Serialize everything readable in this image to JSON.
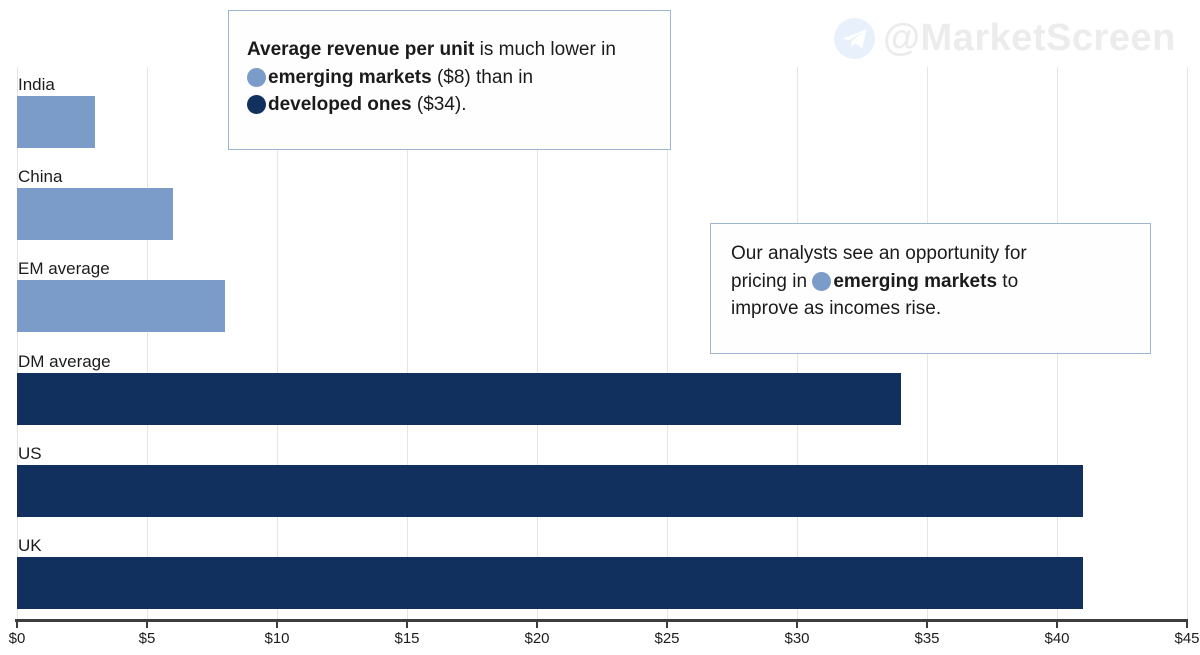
{
  "watermark": {
    "handle": "@MarketScreen"
  },
  "annotations": [
    {
      "id": "callout-revenue",
      "lines": [
        [
          {
            "t": "Average revenue per unit",
            "b": true
          },
          {
            "t": " is much lower in"
          }
        ],
        [
          {
            "dot": "emerging"
          },
          {
            "t": "emerging markets",
            "b": true
          },
          {
            "t": " ($8) than in"
          }
        ],
        [
          {
            "dot": "developed"
          },
          {
            "t": "developed ones",
            "b": true
          },
          {
            "t": " ($34)."
          }
        ]
      ]
    },
    {
      "id": "callout-analysts",
      "lines": [
        [
          {
            "t": "Our analysts see an opportunity for"
          }
        ],
        [
          {
            "t": "pricing in "
          },
          {
            "dot": "emerging"
          },
          {
            "t": "emerging markets",
            "b": true
          },
          {
            "t": " to"
          }
        ],
        [
          {
            "t": "improve as incomes rise."
          }
        ]
      ]
    }
  ],
  "chart_data": {
    "type": "bar",
    "orientation": "horizontal",
    "title": "Average revenue per unit",
    "categories": [
      "India",
      "China",
      "EM average",
      "DM average",
      "US",
      "UK"
    ],
    "values": [
      3,
      6,
      8,
      34,
      41,
      41
    ],
    "groups": [
      "emerging",
      "emerging",
      "emerging",
      "developed",
      "developed",
      "developed"
    ],
    "group_colors": {
      "emerging": "#7b9cc8",
      "developed": "#12305e"
    },
    "group_labels": {
      "emerging": "emerging markets",
      "developed": "developed ones"
    },
    "xlim": [
      0,
      45
    ],
    "x_tick_step": 5,
    "x_tick_labels": [
      "$0",
      "$5",
      "$10",
      "$15",
      "$20",
      "$25",
      "$30",
      "$35",
      "$40",
      "$45"
    ],
    "grid": "vertical",
    "axis_color": "#3d3d3d",
    "grid_color": "#e5e5e5"
  }
}
